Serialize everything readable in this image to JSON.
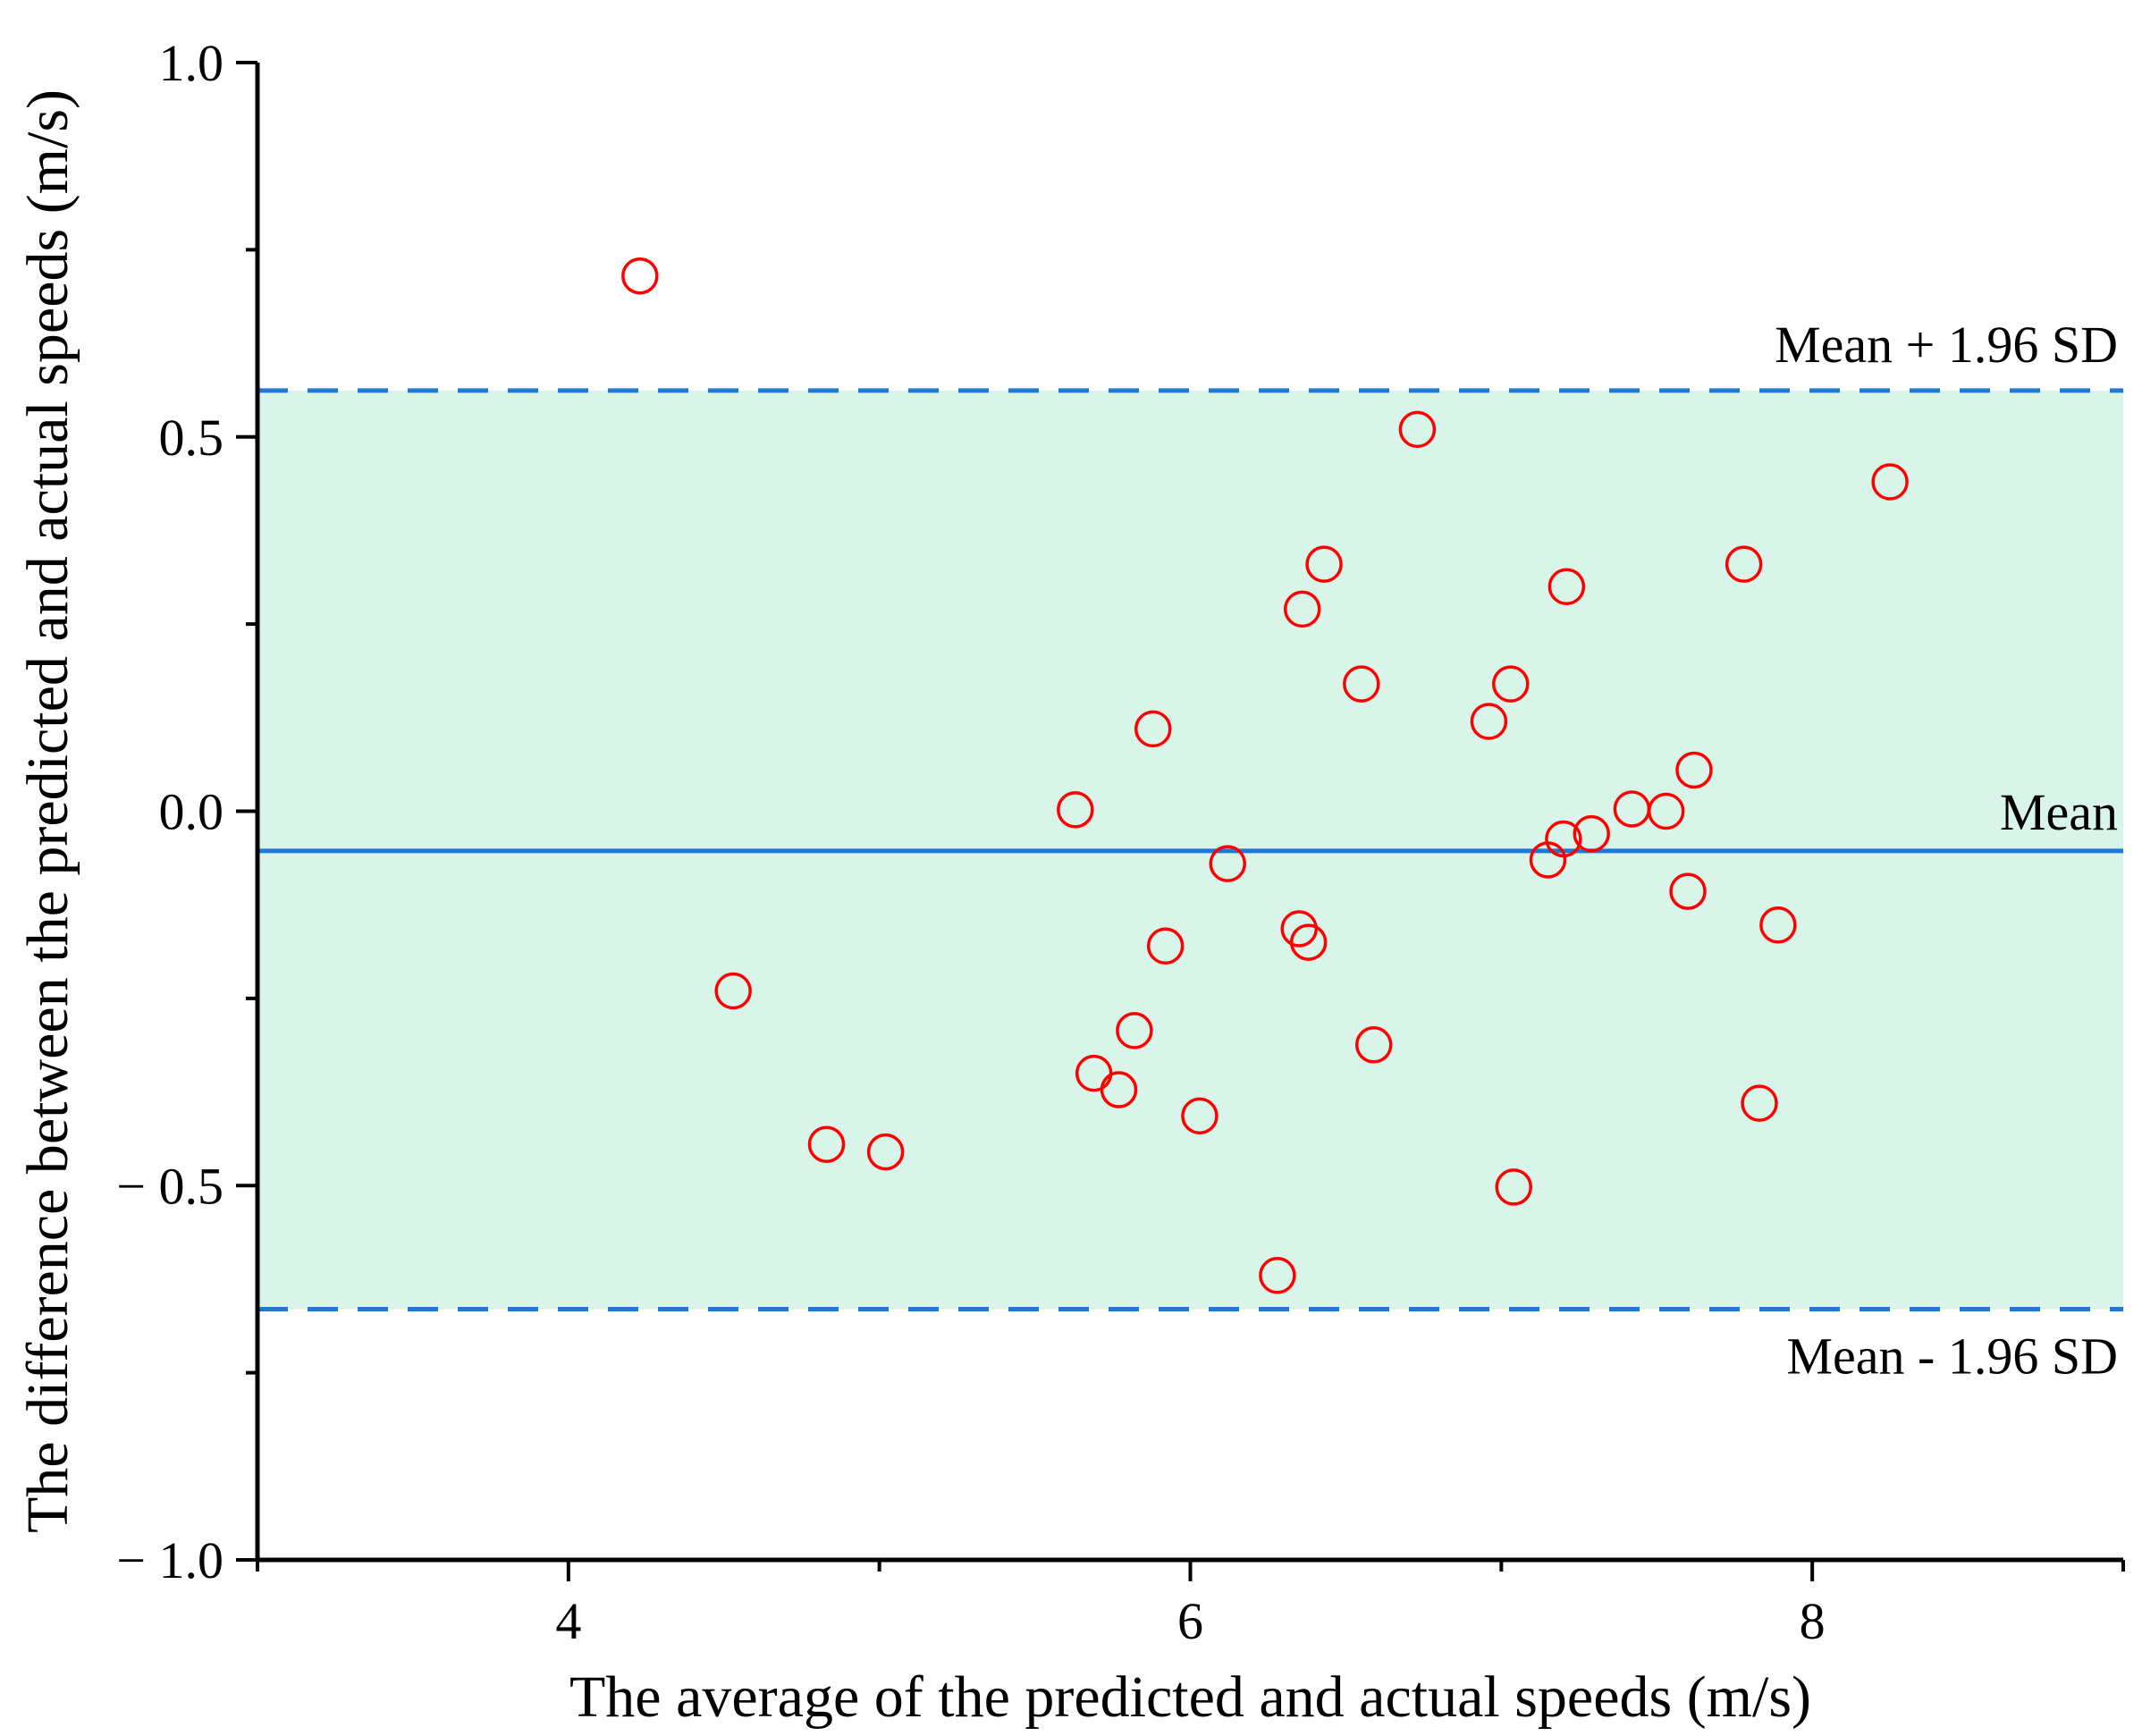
{
  "chart_data": {
    "type": "scatter",
    "title": "",
    "xlabel": "The average of the predicted and actual speeds (m/s)",
    "ylabel": "The difference between the predicted and actual speeds (m/s)",
    "xlim": [
      3.0,
      9.0
    ],
    "ylim": [
      -1.0,
      1.0
    ],
    "x_ticks": [
      4,
      6,
      8
    ],
    "x_tick_labels": [
      "4",
      "6",
      "8"
    ],
    "y_ticks": [
      -1.0,
      -0.5,
      0.0,
      0.5,
      1.0
    ],
    "y_tick_labels": [
      "− 1.0",
      "− 0.5",
      "0.0",
      "0.5",
      "1.0"
    ],
    "grid": false,
    "reference_lines": {
      "mean": {
        "value": -0.053,
        "label": "Mean"
      },
      "upper": {
        "value": 0.562,
        "label": "Mean + 1.96 SD"
      },
      "lower": {
        "value": -0.665,
        "label": "Mean - 1.96 SD"
      }
    },
    "colors": {
      "points": "#ff0000",
      "lines": "#1f77d8",
      "band": "#d9f5ea"
    },
    "points": [
      {
        "x": 4.23,
        "y": 0.715
      },
      {
        "x": 6.73,
        "y": 0.51
      },
      {
        "x": 8.25,
        "y": 0.44
      },
      {
        "x": 6.43,
        "y": 0.33
      },
      {
        "x": 7.78,
        "y": 0.33
      },
      {
        "x": 7.21,
        "y": 0.3
      },
      {
        "x": 6.36,
        "y": 0.27
      },
      {
        "x": 6.55,
        "y": 0.17
      },
      {
        "x": 7.03,
        "y": 0.17
      },
      {
        "x": 6.96,
        "y": 0.12
      },
      {
        "x": 5.88,
        "y": 0.11
      },
      {
        "x": 7.62,
        "y": 0.055
      },
      {
        "x": 5.63,
        "y": 0.002
      },
      {
        "x": 7.42,
        "y": 0.003
      },
      {
        "x": 7.53,
        "y": 0.0
      },
      {
        "x": 7.29,
        "y": -0.03
      },
      {
        "x": 7.2,
        "y": -0.037
      },
      {
        "x": 7.15,
        "y": -0.065
      },
      {
        "x": 6.12,
        "y": -0.07
      },
      {
        "x": 7.6,
        "y": -0.107
      },
      {
        "x": 6.35,
        "y": -0.157
      },
      {
        "x": 6.38,
        "y": -0.175
      },
      {
        "x": 7.89,
        "y": -0.152
      },
      {
        "x": 5.92,
        "y": -0.18
      },
      {
        "x": 4.53,
        "y": -0.24
      },
      {
        "x": 5.82,
        "y": -0.293
      },
      {
        "x": 6.59,
        "y": -0.312
      },
      {
        "x": 5.69,
        "y": -0.35
      },
      {
        "x": 5.77,
        "y": -0.372
      },
      {
        "x": 7.83,
        "y": -0.39
      },
      {
        "x": 6.03,
        "y": -0.407
      },
      {
        "x": 4.83,
        "y": -0.445
      },
      {
        "x": 5.02,
        "y": -0.455
      },
      {
        "x": 7.04,
        "y": -0.502
      },
      {
        "x": 6.28,
        "y": -0.62
      }
    ]
  }
}
